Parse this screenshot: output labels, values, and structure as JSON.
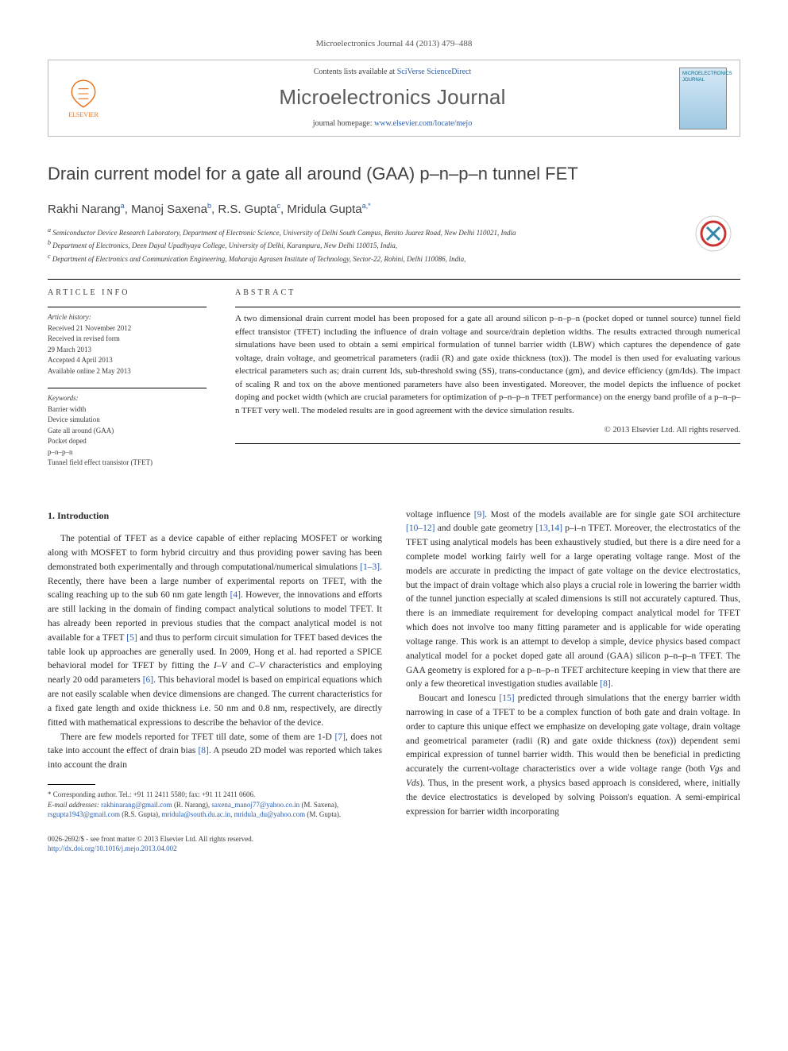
{
  "journal_ref": "Microelectronics Journal 44 (2013) 479–488",
  "header": {
    "contents_prefix": "Contents lists available at ",
    "contents_link": "SciVerse ScienceDirect",
    "journal_title": "Microelectronics Journal",
    "homepage_prefix": "journal homepage: ",
    "homepage_url": "www.elsevier.com/locate/mejo",
    "elsevier_label": "ELSEVIER",
    "cover_label": "MICROELECTRONICS JOURNAL"
  },
  "article": {
    "title": "Drain current model for a gate all around (GAA) p–n–p–n tunnel FET",
    "authors_html": "Rakhi Narang<sup>a</sup>, Manoj Saxena<sup>b</sup>, R.S. Gupta<sup>c</sup>, Mridula Gupta<sup>a,*</sup>",
    "affiliations": [
      "a Semiconductor Device Research Laboratory, Department of Electronic Science, University of Delhi South Campus, Benito Juarez Road, New Delhi 110021, India",
      "b Department of Electronics, Deen Dayal Upadhyaya College, University of Delhi, Karampura, New Delhi 110015, India,",
      "c Department of Electronics and Communication Engineering, Maharaja Agrasen Institute of Technology, Sector-22, Rohini, Delhi 110086, India,"
    ]
  },
  "info": {
    "section_label": "ARTICLE INFO",
    "history_label": "Article history:",
    "history": [
      "Received 21 November 2012",
      "Received in revised form",
      "29 March 2013",
      "Accepted 4 April 2013",
      "Available online 2 May 2013"
    ],
    "keywords_label": "Keywords:",
    "keywords": [
      "Barrier width",
      "Device simulation",
      "Gate all around (GAA)",
      "Pocket doped",
      "p–n–p–n",
      "Tunnel field effect transistor (TFET)"
    ]
  },
  "abstract": {
    "section_label": "ABSTRACT",
    "text": "A two dimensional drain current model has been proposed for a gate all around silicon p–n–p–n (pocket doped or tunnel source) tunnel field effect transistor (TFET) including the influence of drain voltage and source/drain depletion widths. The results extracted through numerical simulations have been used to obtain a semi empirical formulation of tunnel barrier width (LBW) which captures the dependence of gate voltage, drain voltage, and geometrical parameters (radii (R) and gate oxide thickness (tox)). The model is then used for evaluating various electrical parameters such as; drain current Ids, sub-threshold swing (SS), trans-conductance (gm), and device efficiency (gm/Ids). The impact of scaling R and tox on the above mentioned parameters have also been investigated. Moreover, the model depicts the influence of pocket doping and pocket width (which are crucial parameters for optimization of p–n–p–n TFET performance) on the energy band profile of a p–n–p–n TFET very well. The modeled results are in good agreement with the device simulation results.",
    "copyright": "© 2013 Elsevier Ltd. All rights reserved."
  },
  "body": {
    "heading": "1. Introduction",
    "col1_p1": "The potential of TFET as a device capable of either replacing MOSFET or working along with MOSFET to form hybrid circuitry and thus providing power saving has been demonstrated both experimentally and through computational/numerical simulations [1–3]. Recently, there have been a large number of experimental reports on TFET, with the scaling reaching up to the sub 60 nm gate length [4]. However, the innovations and efforts are still lacking in the domain of finding compact analytical solutions to model TFET. It has already been reported in previous studies that the compact analytical model is not available for a TFET [5] and thus to perform circuit simulation for TFET based devices the table look up approaches are generally used. In 2009, Hong et al. had reported a SPICE behavioral model for TFET by fitting the I–V and C–V characteristics and employing nearly 20 odd parameters [6]. This behavioral model is based on empirical equations which are not easily scalable when device dimensions are changed. The current characteristics for a fixed gate length and oxide thickness i.e. 50 nm and 0.8 nm, respectively, are directly fitted with mathematical expressions to describe the behavior of the device.",
    "col1_p2": "There are few models reported for TFET till date, some of them are 1-D [7], does not take into account the effect of drain bias [8]. A pseudo 2D model was reported which takes into account the drain",
    "col2_p1": "voltage influence [9]. Most of the models available are for single gate SOI architecture [10–12] and double gate geometry [13,14] p–i–n TFET. Moreover, the electrostatics of the TFET using analytical models has been exhaustively studied, but there is a dire need for a complete model working fairly well for a large operating voltage range. Most of the models are accurate in predicting the impact of gate voltage on the device electrostatics, but the impact of drain voltage which also plays a crucial role in lowering the barrier width of the tunnel junction especially at scaled dimensions is still not accurately captured. Thus, there is an immediate requirement for developing compact analytical model for TFET which does not involve too many fitting parameter and is applicable for wide operating voltage range. This work is an attempt to develop a simple, device physics based compact analytical model for a pocket doped gate all around (GAA) silicon p–n–p–n TFET. The GAA geometry is explored for a p–n–p–n TFET architecture keeping in view that there are only a few theoretical investigation studies available [8].",
    "col2_p2": "Boucart and Ionescu [15] predicted through simulations that the energy barrier width narrowing in case of a TFET to be a complex function of both gate and drain voltage. In order to capture this unique effect we emphasize on developing gate voltage, drain voltage and geometrical parameter (radii (R) and gate oxide thickness (tox)) dependent semi empirical expression of tunnel barrier width. This would then be beneficial in predicting accurately the current-voltage characteristics over a wide voltage range (both Vgs and Vds). Thus, in the present work, a physics based approach is considered, where, initially the device electrostatics is developed by solving Poisson's equation. A semi-empirical expression for barrier width incorporating"
  },
  "footnotes": {
    "corresponding": "* Corresponding author. Tel.: +91 11 2411 5580; fax: +91 11 2411 0606.",
    "email_label": "E-mail addresses:",
    "emails": "rakhinarang@gmail.com (R. Narang), saxena_manoj77@yahoo.co.in (M. Saxena), rsgupta1943@gmail.com (R.S. Gupta), mridula@south.du.ac.in, mridula_du@yahoo.com (M. Gupta)."
  },
  "footer": {
    "line1": "0026-2692/$ - see front matter © 2013 Elsevier Ltd. All rights reserved.",
    "doi": "http://dx.doi.org/10.1016/j.mejo.2013.04.002"
  },
  "colors": {
    "link": "#2a5db0",
    "elsevier_orange": "#e9711c",
    "text": "#2a2a2a",
    "heading_gray": "#404040"
  }
}
